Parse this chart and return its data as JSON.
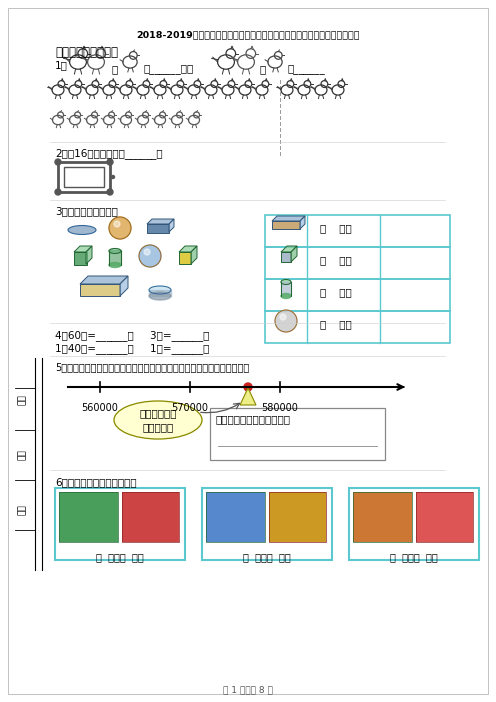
{
  "title": "2018-2019年天津市静海区静海镇徐庄子小学一年级下册数学期末测试含答案",
  "section1": "一、想一想，填一填",
  "q1_label": "1．",
  "q1_mid": "比",
  "q1_more": "多______只，",
  "q1_less": "少______",
  "q2_text": "2．用16根小棒可以摆______个",
  "q3_text": "3．数一数，分一分。",
  "q4_text1": "4．60秒=______分     3分=______秒",
  "q4_text2": "1分40秒=______秒     1时=______分",
  "q5_text": "5．寻一个数在数射线上的位置如下，你能用四舍五入法把它凑整万数吗？",
  "q6_text": "6．写出每组人民币的钱数。",
  "num560": "560000",
  "num570": "570000",
  "num580": "580000",
  "callout_text": "这个数在数射\n线上的位置",
  "box1_line1": "这个数凑整万数的结果是：",
  "currency_label": "（  ）元（  ）角",
  "page_text": "第 1 页，共 8 页",
  "side_fen": "分数",
  "side_ban": "班级",
  "side_xing": "姓名",
  "bg": "#ffffff",
  "teal": "#5bc8d0",
  "gray": "#888888",
  "black": "#000000",
  "rooster_color": "#555555",
  "chicken_color": "#666666"
}
